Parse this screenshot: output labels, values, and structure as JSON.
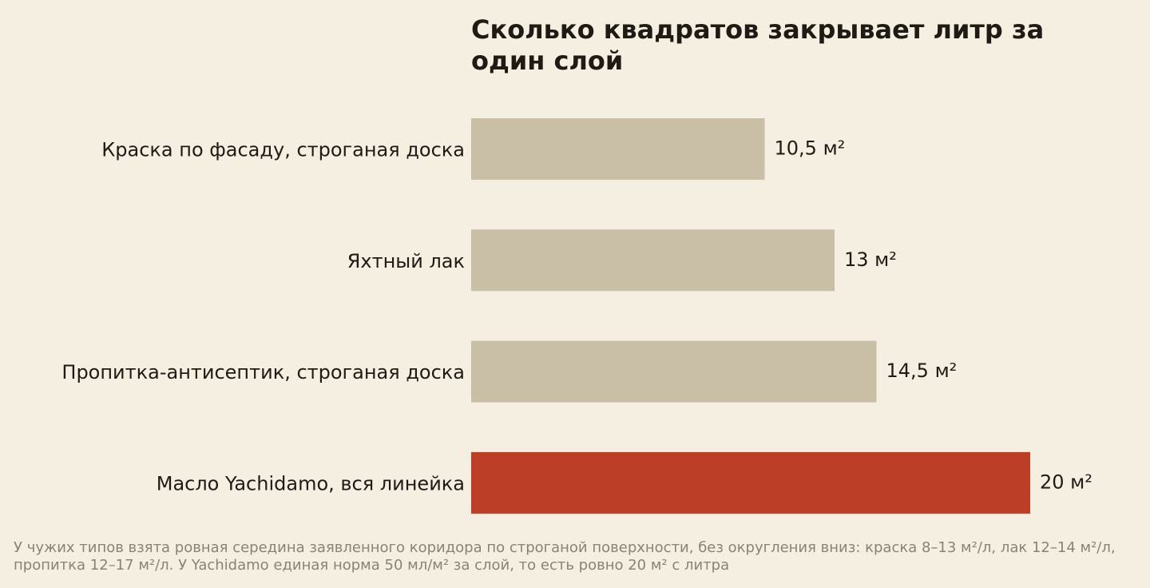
{
  "chart_data": {
    "type": "bar",
    "orientation": "horizontal",
    "title": "Сколько квадратов закрывает литр за один слой",
    "categories": [
      "Краска по фасаду, строганая доска",
      "Яхтный лак",
      "Пропитка-антисептик, строганая доска",
      "Масло Yachidamo, вся линейка"
    ],
    "values": [
      10.5,
      13,
      14.5,
      20
    ],
    "value_labels": [
      "10,5 м²",
      "13 м²",
      "14,5 м²",
      "20 м²"
    ],
    "unit": "м²",
    "xlim": [
      0,
      20
    ],
    "grid": false,
    "legend": "none",
    "colors": {
      "default_bar": "#c9bfa7",
      "highlight_bar": "#bc3e27",
      "background": "#f5efe2",
      "text": "#1f1a14",
      "footnote_text": "#8a8276"
    },
    "highlight_index": 3
  },
  "footnote": "У чужих типов взята ровная середина заявленного коридора по строганой поверхности, без округления вниз: краска 8–13 м²/л, лак 12–14 м²/л, пропитка 12–17 м²/л. У Yachidamo единая норма 50 мл/м² за слой, то есть ровно 20 м² с литра"
}
